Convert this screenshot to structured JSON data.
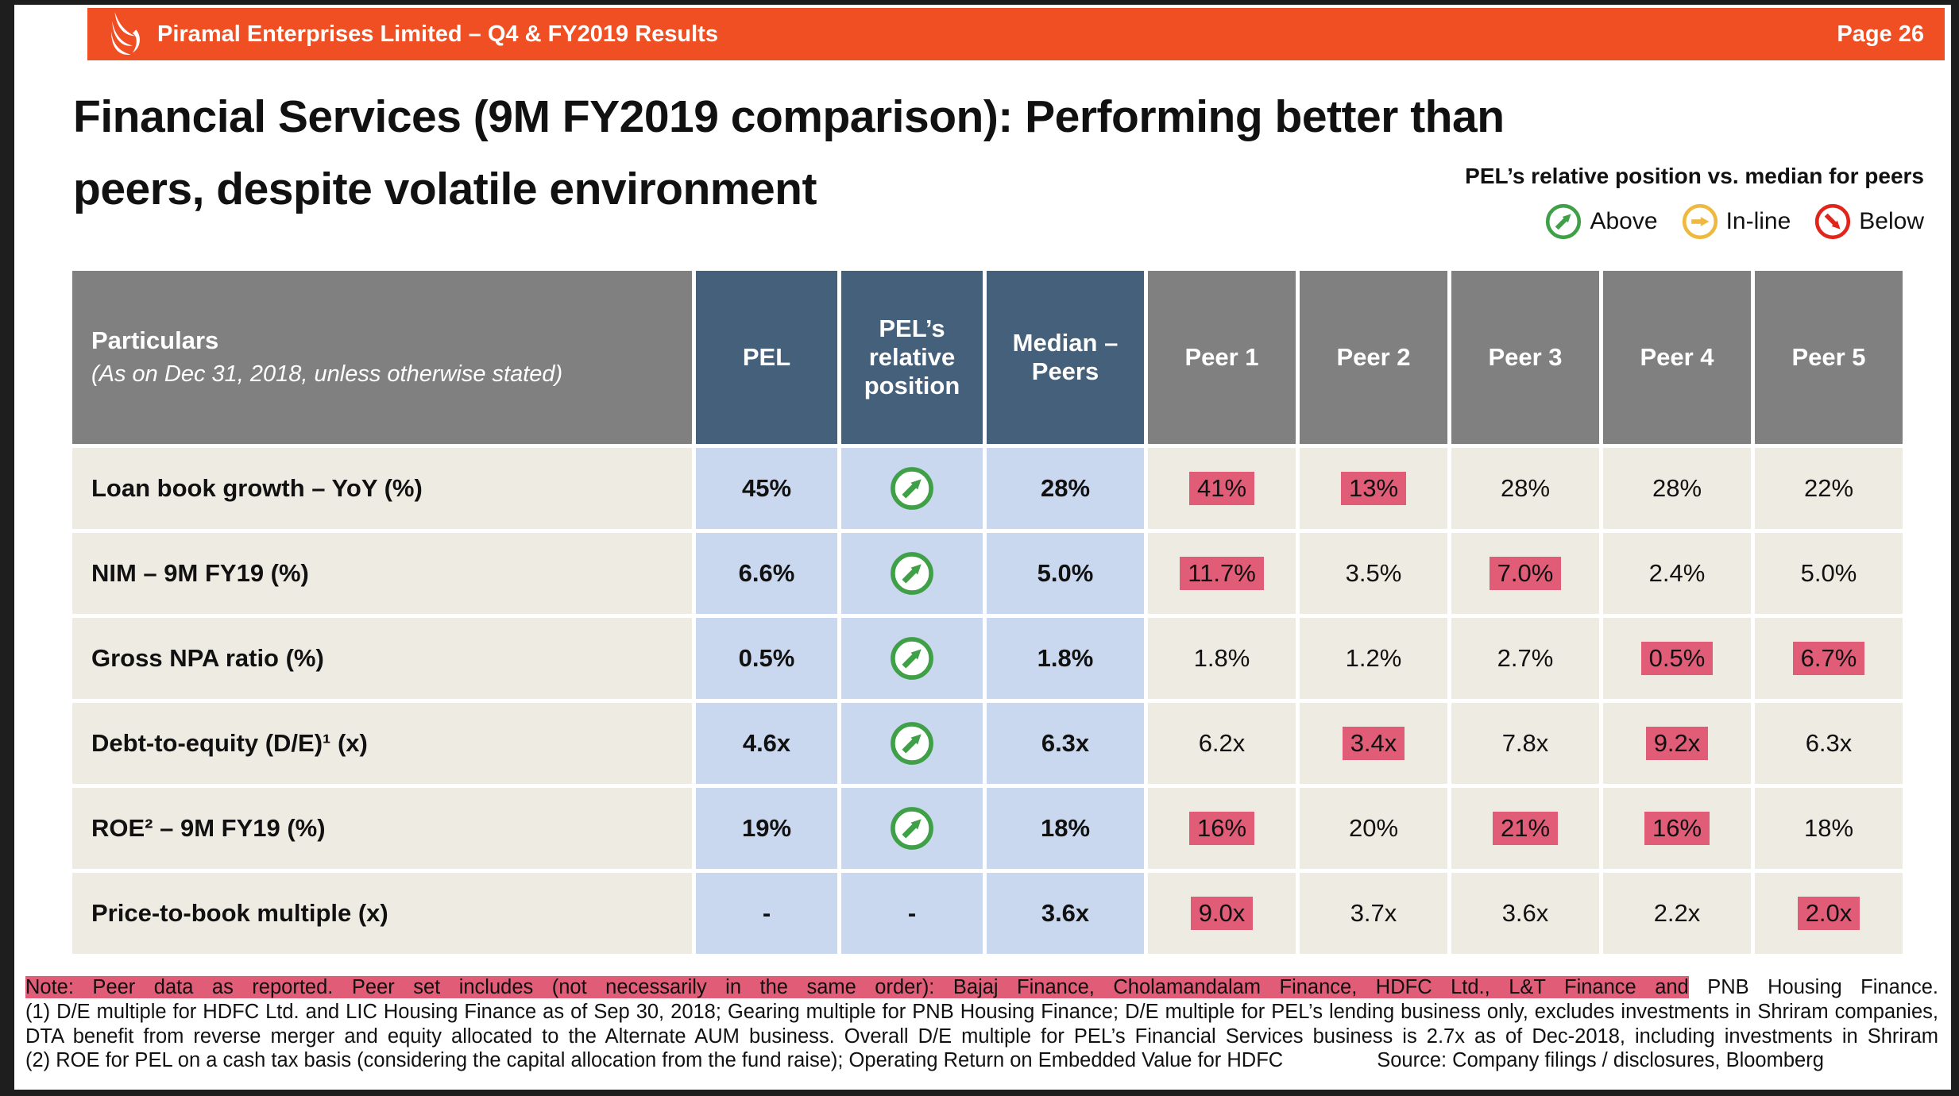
{
  "colors": {
    "header_orange": "#F04E23",
    "steel_blue_header": "#44607A",
    "gray_header": "#808080",
    "light_blue_cell": "#C9D8EE",
    "cream_cell": "#EDEBE2",
    "pink_highlight": "#E05C77",
    "above_green": "#3FA047",
    "inline_amber": "#EFB93F",
    "below_red": "#E1251B"
  },
  "topbar": {
    "title": "Piramal Enterprises Limited – Q4 & FY2019 Results",
    "page": "Page 26"
  },
  "title_line1": "Financial Services (9M FY2019 comparison): Performing better than",
  "title_line2": "peers, despite volatile environment",
  "legend": {
    "title": "PEL’s relative position vs. median for peers",
    "items": [
      {
        "type": "above",
        "label": "Above"
      },
      {
        "type": "inline",
        "label": "In-line"
      },
      {
        "type": "below",
        "label": "Below"
      }
    ]
  },
  "table": {
    "columns": {
      "particulars_title": "Particulars",
      "particulars_subtitle": "(As on Dec 31, 2018, unless otherwise stated)",
      "pel": "PEL",
      "position": "PEL’s relative position",
      "median": "Median – Peers",
      "peers": [
        "Peer 1",
        "Peer 2",
        "Peer 3",
        "Peer 4",
        "Peer 5"
      ]
    },
    "rows": [
      {
        "label": "Loan book growth – YoY (%)",
        "pel": "45%",
        "position": "above",
        "median": "28%",
        "peers": [
          {
            "v": "41%",
            "hl": true
          },
          {
            "v": "13%",
            "hl": true
          },
          {
            "v": "28%",
            "hl": false
          },
          {
            "v": "28%",
            "hl": false
          },
          {
            "v": "22%",
            "hl": false
          }
        ]
      },
      {
        "label": "NIM – 9M FY19 (%)",
        "pel": "6.6%",
        "position": "above",
        "median": "5.0%",
        "peers": [
          {
            "v": "11.7%",
            "hl": true
          },
          {
            "v": "3.5%",
            "hl": false
          },
          {
            "v": "7.0%",
            "hl": true
          },
          {
            "v": "2.4%",
            "hl": false
          },
          {
            "v": "5.0%",
            "hl": false
          }
        ]
      },
      {
        "label": "Gross NPA ratio (%)",
        "pel": "0.5%",
        "position": "above",
        "median": "1.8%",
        "peers": [
          {
            "v": "1.8%",
            "hl": false
          },
          {
            "v": "1.2%",
            "hl": false
          },
          {
            "v": "2.7%",
            "hl": false
          },
          {
            "v": "0.5%",
            "hl": true
          },
          {
            "v": "6.7%",
            "hl": true
          }
        ]
      },
      {
        "label": "Debt-to-equity (D/E)¹ (x)",
        "pel": "4.6x",
        "position": "above",
        "median": "6.3x",
        "peers": [
          {
            "v": "6.2x",
            "hl": false
          },
          {
            "v": "3.4x",
            "hl": true
          },
          {
            "v": "7.8x",
            "hl": false
          },
          {
            "v": "9.2x",
            "hl": true
          },
          {
            "v": "6.3x",
            "hl": false
          }
        ]
      },
      {
        "label": "ROE² – 9M FY19 (%)",
        "pel": "19%",
        "position": "above",
        "median": "18%",
        "peers": [
          {
            "v": "16%",
            "hl": true
          },
          {
            "v": "20%",
            "hl": false
          },
          {
            "v": "21%",
            "hl": true
          },
          {
            "v": "16%",
            "hl": true
          },
          {
            "v": "18%",
            "hl": false
          }
        ]
      },
      {
        "label": "Price-to-book multiple (x)",
        "pel": "-",
        "position": "dash",
        "median": "3.6x",
        "peers": [
          {
            "v": "9.0x",
            "hl": true
          },
          {
            "v": "3.7x",
            "hl": false
          },
          {
            "v": "3.6x",
            "hl": false
          },
          {
            "v": "2.2x",
            "hl": false
          },
          {
            "v": "2.0x",
            "hl": true
          }
        ]
      }
    ]
  },
  "notes": {
    "note1_highlight": "Note: Peer data as reported. Peer set includes (not necessarily in the same order): Bajaj Finance, Cholamandalam Finance, HDFC Ltd., L&T Finance and",
    "note1_rest": " PNB Housing Finance.",
    "note2": "(1) D/E multiple for HDFC Ltd. and LIC Housing Finance as of Sep 30, 2018; Gearing multiple for PNB Housing Finance; D/E multiple for PEL’s lending business only, excludes investments in Shriram companies, DTA benefit from reverse merger and equity allocated to the Alternate AUM business. Overall D/E multiple for PEL’s Financial Services business is 2.7x as of Dec-2018, including investments in Shriram",
    "note3": "(2) ROE for PEL on a cash tax basis (considering the capital allocation from the fund raise); Operating Return on Embedded Value for HDFC",
    "source": "Source: Company filings / disclosures, Bloomberg"
  }
}
